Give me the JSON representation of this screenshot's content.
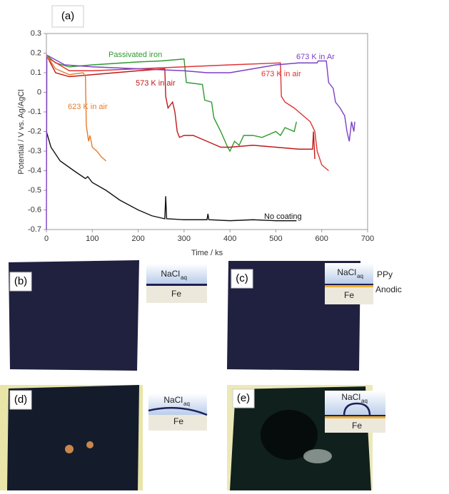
{
  "chart_data": {
    "type": "line",
    "panel_label": "(a)",
    "x_label": "Time / ks",
    "y_label": "Potential / V vs. Ag/AgCl",
    "xlim": [
      0,
      700
    ],
    "xticks": [
      0,
      100,
      200,
      300,
      400,
      500,
      600,
      700
    ],
    "ylim": [
      -0.7,
      0.3
    ],
    "yticks": [
      -0.7,
      -0.6,
      -0.5,
      -0.4,
      -0.3,
      -0.2,
      -0.1,
      0,
      0.1,
      0.2,
      0.3
    ],
    "grid": false,
    "series": [
      {
        "name": "No coating",
        "color": "#111111",
        "x": [
          0,
          10,
          30,
          60,
          85,
          90,
          100,
          130,
          160,
          200,
          230,
          258,
          260,
          262,
          300,
          350,
          352,
          354,
          400,
          450,
          500,
          545
        ],
        "values": [
          -0.2,
          -0.28,
          -0.35,
          -0.4,
          -0.44,
          -0.43,
          -0.46,
          -0.5,
          -0.55,
          -0.6,
          -0.63,
          -0.645,
          -0.53,
          -0.645,
          -0.65,
          -0.65,
          -0.62,
          -0.65,
          -0.655,
          -0.65,
          -0.655,
          -0.655
        ]
      },
      {
        "name": "Passivated iron",
        "color": "#2e9a2e",
        "x": [
          0,
          20,
          50,
          100,
          200,
          250,
          300,
          305,
          340,
          345,
          360,
          365,
          380,
          395,
          400,
          410,
          420,
          430,
          450,
          470,
          500,
          510,
          520,
          540,
          545
        ],
        "values": [
          0.19,
          0.15,
          0.13,
          0.14,
          0.155,
          0.16,
          0.17,
          0.05,
          0.04,
          -0.04,
          -0.05,
          -0.13,
          -0.2,
          -0.28,
          -0.3,
          -0.25,
          -0.27,
          -0.22,
          -0.22,
          -0.23,
          -0.2,
          -0.22,
          -0.18,
          -0.2,
          -0.15
        ]
      },
      {
        "name": "573 K in air",
        "color": "#c01818",
        "x": [
          0,
          20,
          50,
          100,
          150,
          200,
          258,
          260,
          265,
          275,
          280,
          285,
          290,
          300,
          320,
          350,
          380,
          400,
          450,
          500,
          550,
          580,
          582,
          585
        ],
        "values": [
          0.19,
          0.1,
          0.08,
          0.09,
          0.1,
          0.11,
          0.12,
          -0.02,
          -0.08,
          -0.05,
          -0.1,
          -0.2,
          -0.23,
          -0.22,
          -0.22,
          -0.25,
          -0.28,
          -0.28,
          -0.27,
          -0.28,
          -0.29,
          -0.29,
          -0.2,
          -0.34
        ]
      },
      {
        "name": "673 K in air",
        "color": "#e03232",
        "x": [
          0,
          50,
          100,
          200,
          300,
          400,
          510,
          512,
          520,
          540,
          560,
          575,
          585,
          590,
          600,
          615
        ],
        "values": [
          0.18,
          0.11,
          0.11,
          0.12,
          0.13,
          0.14,
          0.15,
          -0.02,
          -0.05,
          -0.08,
          -0.12,
          -0.15,
          -0.2,
          -0.3,
          -0.37,
          -0.4
        ]
      },
      {
        "name": "673 K in Ar",
        "color": "#7b3fc4",
        "x": [
          0,
          1,
          40,
          100,
          200,
          300,
          350,
          400,
          450,
          500,
          550,
          590,
          592,
          610,
          615,
          625,
          630,
          640,
          650,
          655,
          660,
          665,
          670,
          672
        ],
        "values": [
          -0.7,
          0.19,
          0.14,
          0.13,
          0.12,
          0.11,
          0.1,
          0.1,
          0.12,
          0.14,
          0.15,
          0.15,
          0.16,
          0.16,
          0.05,
          0.02,
          -0.05,
          -0.08,
          -0.12,
          -0.2,
          -0.25,
          -0.15,
          -0.2,
          -0.15
        ]
      },
      {
        "name": "623 K in air",
        "color": "#e87a2a",
        "x": [
          0,
          20,
          50,
          80,
          85,
          87,
          92,
          95,
          100,
          110,
          120,
          130
        ],
        "values": [
          0.19,
          0.12,
          0.09,
          0.1,
          0.08,
          -0.17,
          -0.25,
          -0.22,
          -0.28,
          -0.3,
          -0.33,
          -0.35
        ]
      }
    ]
  },
  "panels": [
    {
      "label": "(b)",
      "liquid": "NaCl",
      "liquid_sub": "aq",
      "substrate": "Fe"
    },
    {
      "label": "(c)",
      "liquid": "NaCl",
      "liquid_sub": "aq",
      "substrate": "Fe",
      "layer_top": "PPy",
      "layer_bottom": "Anodic"
    },
    {
      "label": "(d)",
      "liquid": "NaCl",
      "liquid_sub": "aq",
      "substrate": "Fe"
    },
    {
      "label": "(e)",
      "liquid": "NaCl",
      "liquid_sub": "aq",
      "substrate": "Fe"
    }
  ]
}
